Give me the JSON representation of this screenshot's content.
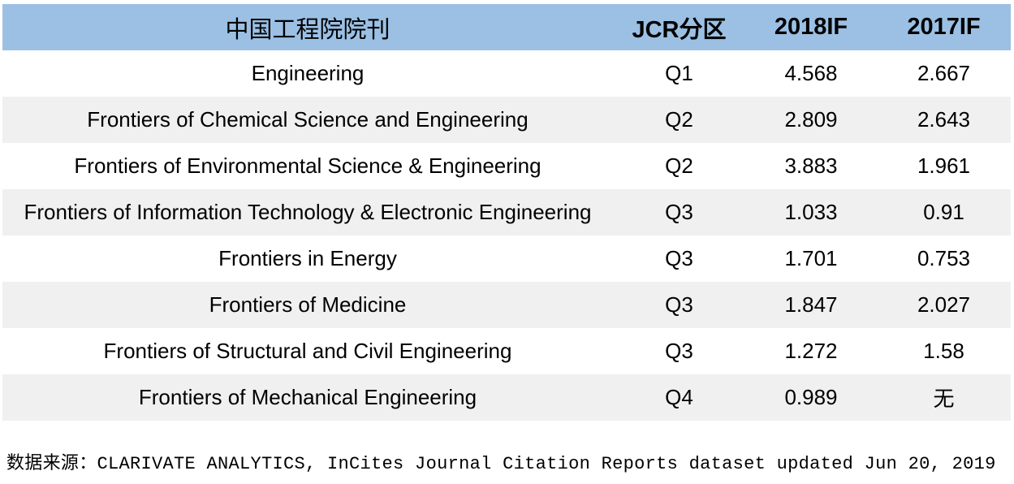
{
  "table": {
    "headers": [
      "中国工程院院刊",
      "JCR分区",
      "2018IF",
      "2017IF"
    ],
    "rows": [
      [
        "Engineering",
        "Q1",
        "4.568",
        "2.667"
      ],
      [
        "Frontiers of Chemical Science and Engineering",
        "Q2",
        "2.809",
        "2.643"
      ],
      [
        "Frontiers of Environmental Science & Engineering",
        "Q2",
        "3.883",
        "1.961"
      ],
      [
        "Frontiers of Information Technology & Electronic Engineering",
        "Q3",
        "1.033",
        "0.91"
      ],
      [
        "Frontiers in Energy",
        "Q3",
        "1.701",
        "0.753"
      ],
      [
        "Frontiers of Medicine",
        "Q3",
        "1.847",
        "2.027"
      ],
      [
        "Frontiers of Structural and Civil Engineering",
        "Q3",
        "1.272",
        "1.58"
      ],
      [
        "Frontiers of Mechanical Engineering",
        "Q4",
        "0.989",
        "无"
      ]
    ]
  },
  "footer": "数据来源：CLARIVATE ANALYTICS, InCites Journal Citation Reports dataset updated Jun 20, 2019",
  "colors": {
    "header_bg": "#9bc0e4",
    "alt_row_bg": "#f0f0f0"
  }
}
